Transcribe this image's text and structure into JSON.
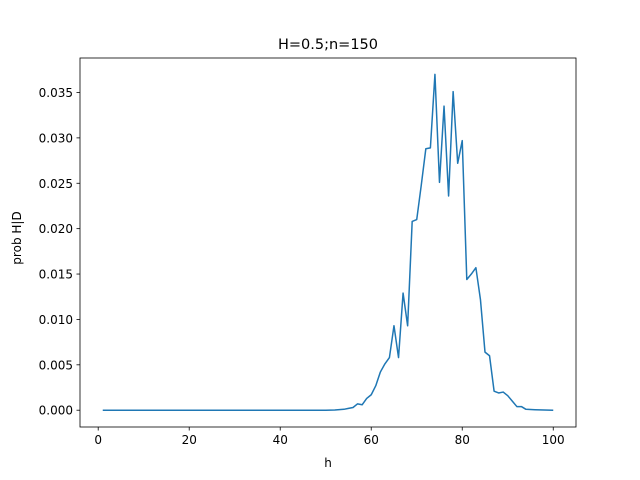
{
  "chart_data": {
    "type": "line",
    "title": "H=0.5;n=150",
    "xlabel": "h",
    "ylabel": "prob H|D",
    "xlim": [
      -4.0,
      105.0
    ],
    "ylim": [
      -0.00185,
      0.0388
    ],
    "xticks": [
      0,
      20,
      40,
      60,
      80,
      100
    ],
    "yticks": [
      0.0,
      0.005,
      0.01,
      0.015,
      0.02,
      0.025,
      0.03,
      0.035
    ],
    "ytick_labels": [
      "0.000",
      "0.005",
      "0.010",
      "0.015",
      "0.020",
      "0.025",
      "0.030",
      "0.035"
    ],
    "grid": false,
    "line_color": "#1f77b4",
    "series": [
      {
        "x": [
          1,
          5,
          10,
          15,
          20,
          25,
          30,
          35,
          40,
          45,
          50,
          52,
          54,
          55,
          56,
          57,
          58,
          59,
          60,
          61,
          62,
          63,
          64,
          65,
          66,
          67,
          68,
          69,
          70,
          71,
          72,
          73,
          74,
          75,
          76,
          77,
          78,
          79,
          80,
          81,
          82,
          83,
          84,
          85,
          86,
          87,
          88,
          89,
          90,
          91,
          92,
          93,
          94,
          96,
          98,
          100
        ],
        "y": [
          0,
          0,
          0,
          0,
          0,
          0,
          0,
          0,
          0,
          0,
          0,
          2e-05,
          0.0001,
          0.0002,
          0.0003,
          0.0007,
          0.0006,
          0.0013,
          0.0017,
          0.0027,
          0.0042,
          0.0051,
          0.0058,
          0.0093,
          0.0058,
          0.0129,
          0.0093,
          0.0208,
          0.021,
          0.0248,
          0.0288,
          0.0289,
          0.037,
          0.0251,
          0.0335,
          0.0236,
          0.0351,
          0.0272,
          0.0297,
          0.0144,
          0.015,
          0.0157,
          0.0122,
          0.0064,
          0.006,
          0.0021,
          0.0019,
          0.002,
          0.0016,
          0.001,
          0.0004,
          0.0004,
          0.0001,
          5e-05,
          2e-05,
          0
        ]
      }
    ]
  }
}
